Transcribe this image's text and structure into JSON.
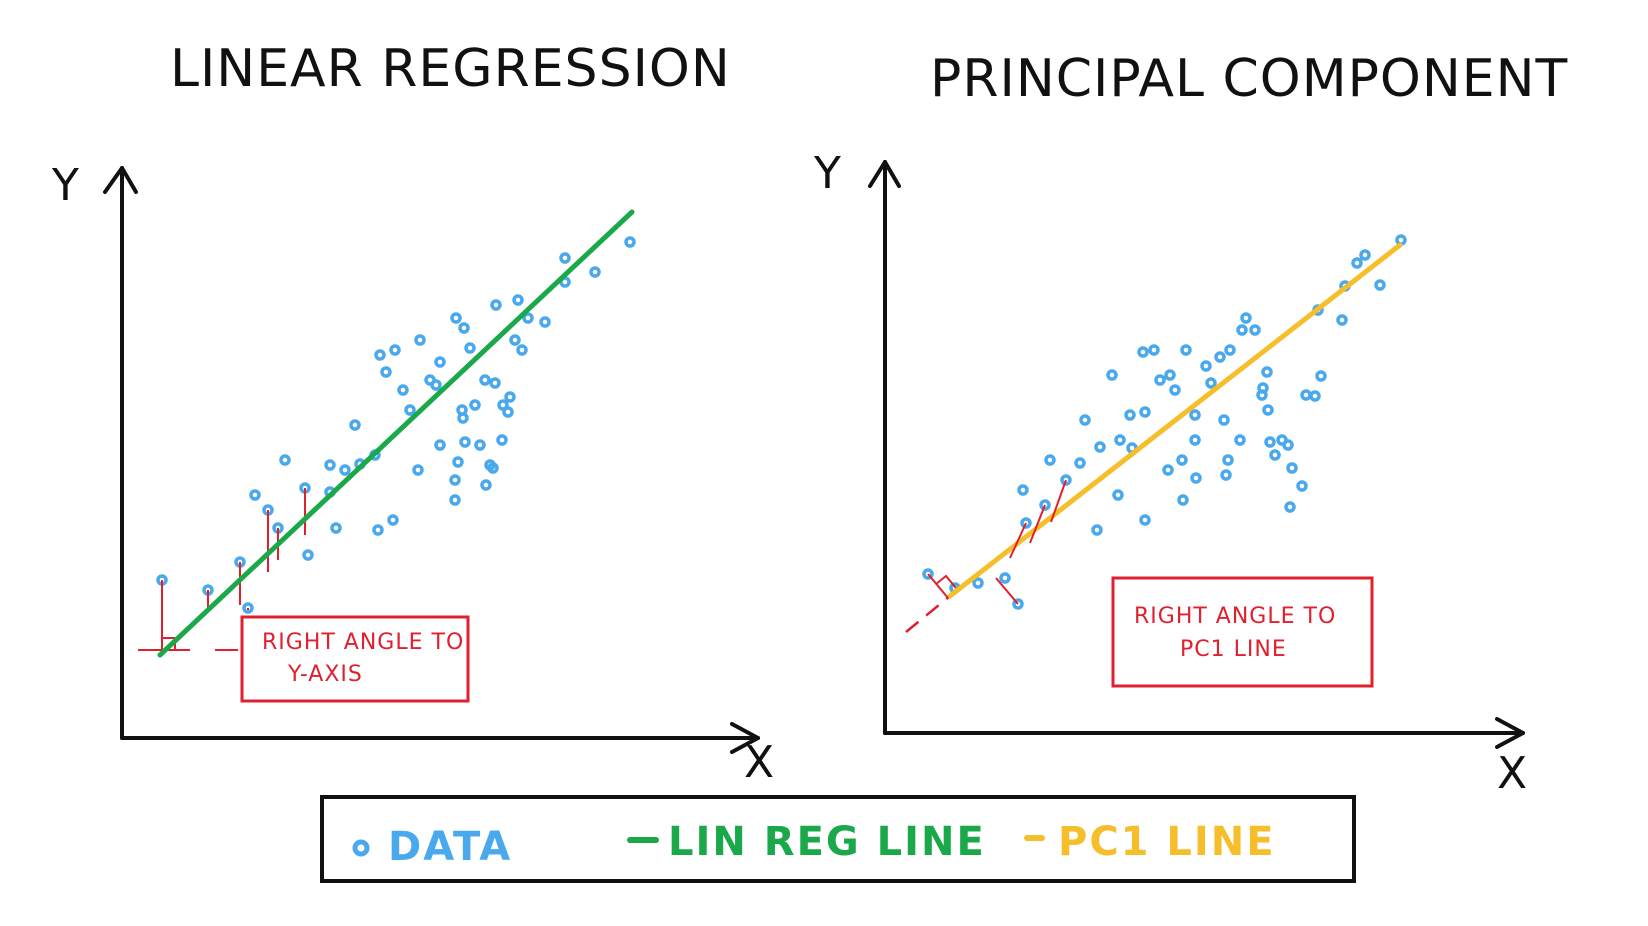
{
  "titles": {
    "left": "LINEAR REGRESSION",
    "right": "PRINCIPAL COMPONENT"
  },
  "axes": {
    "y_label": "Y",
    "x_label": "X"
  },
  "notes": {
    "left_line1": "RIGHT ANGLE TO",
    "left_line2": "Y-AXIS",
    "right_line1": "RIGHT ANGLE TO",
    "right_line2": "PC1 LINE"
  },
  "legend": {
    "data_label": "DATA",
    "linreg_label": "LIN REG LINE",
    "pc1_label": "PC1 LINE"
  },
  "colors": {
    "data": "#4aa8ec",
    "linreg": "#1aa84a",
    "pc1": "#f5be2a",
    "annotation": "#e0202e",
    "ink": "#111111"
  }
}
